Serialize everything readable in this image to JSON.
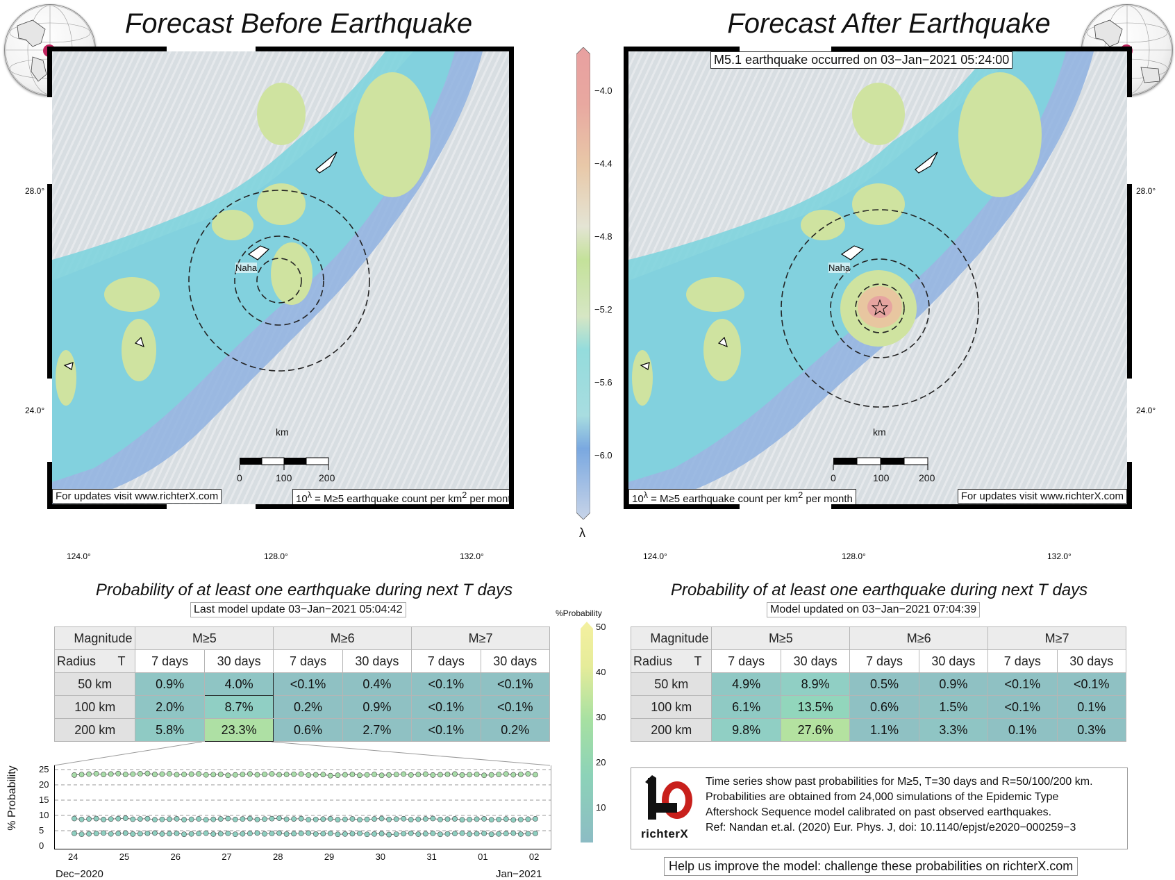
{
  "left_map": {
    "title": "Forecast Before Earthquake",
    "footer_left": "For updates visit www.richterX.com",
    "footer_right_prefix": "10",
    "footer_right_sup": "λ",
    "footer_right_rest": " = M≥5 earthquake count per km",
    "footer_right_sup2": "2",
    "footer_right_tail": " per month",
    "city": "Naha",
    "scale_unit": "km",
    "scale_labels": [
      "0",
      "100",
      "200"
    ],
    "lat_labels": [
      "28.0°",
      "24.0°"
    ],
    "lon_labels": [
      "124.0°",
      "128.0°",
      "132.0°"
    ]
  },
  "right_map": {
    "title": "Forecast After Earthquake",
    "event_note": "M5.1 earthquake occurred on 03−Jan−2021 05:24:00",
    "footer_left_prefix": "10",
    "footer_left_sup": "λ",
    "footer_left_rest": " = M≥5 earthquake count per km",
    "footer_left_sup2": "2",
    "footer_left_tail": " per month",
    "footer_right": "For updates visit www.richterX.com",
    "city": "Naha",
    "scale_unit": "km",
    "scale_labels": [
      "0",
      "100",
      "200"
    ],
    "lat_labels": [
      "28.0°",
      "24.0°"
    ],
    "lon_labels": [
      "124.0°",
      "128.0°",
      "132.0°"
    ]
  },
  "map_colorbar": {
    "symbol": "λ",
    "ticks": [
      "−4.0",
      "−4.4",
      "−4.8",
      "−5.2",
      "−5.6",
      "−6.0"
    ]
  },
  "left_table": {
    "title": "Probability of at least one earthquake during next T days",
    "update": "Last model update 03−Jan−2021 05:04:42",
    "hdr_magnitude": "Magnitude",
    "hdr_radius": "Radius",
    "hdr_t": "T",
    "mags": [
      "M≥5",
      "M≥6",
      "M≥7"
    ],
    "periods": [
      "7 days",
      "30 days",
      "7 days",
      "30 days",
      "7 days",
      "30 days"
    ],
    "rows": [
      {
        "radius": "50 km",
        "cells": [
          "0.9%",
          "4.0%",
          "<0.1%",
          "0.4%",
          "<0.1%",
          "<0.1%"
        ]
      },
      {
        "radius": "100 km",
        "cells": [
          "2.0%",
          "8.7%",
          "0.2%",
          "0.9%",
          "<0.1%",
          "<0.1%"
        ]
      },
      {
        "radius": "200 km",
        "cells": [
          "5.8%",
          "23.3%",
          "0.6%",
          "2.7%",
          "<0.1%",
          "0.2%"
        ]
      }
    ]
  },
  "right_table": {
    "title": "Probability of at least one earthquake during next T days",
    "update": "Model updated on 03−Jan−2021 07:04:39",
    "hdr_magnitude": "Magnitude",
    "hdr_radius": "Radius",
    "hdr_t": "T",
    "mags": [
      "M≥5",
      "M≥6",
      "M≥7"
    ],
    "periods": [
      "7 days",
      "30 days",
      "7 days",
      "30 days",
      "7 days",
      "30 days"
    ],
    "rows": [
      {
        "radius": "50 km",
        "cells": [
          "4.9%",
          "8.9%",
          "0.5%",
          "0.9%",
          "<0.1%",
          "<0.1%"
        ]
      },
      {
        "radius": "100 km",
        "cells": [
          "6.1%",
          "13.5%",
          "0.6%",
          "1.5%",
          "<0.1%",
          "0.1%"
        ]
      },
      {
        "radius": "200 km",
        "cells": [
          "9.8%",
          "27.6%",
          "1.1%",
          "3.3%",
          "0.1%",
          "0.3%"
        ]
      }
    ]
  },
  "prob_colorbar": {
    "label": "%Probability",
    "ticks": [
      "50",
      "40",
      "30",
      "20",
      "10"
    ]
  },
  "chart_data": {
    "type": "scatter",
    "ylabel": "% Probability",
    "ylim": [
      0,
      25
    ],
    "yticks": [
      "25",
      "20",
      "15",
      "10",
      "5",
      "0"
    ],
    "xticks": [
      "24",
      "25",
      "26",
      "27",
      "28",
      "29",
      "30",
      "31",
      "01",
      "02"
    ],
    "x_start_label": "Dec−2020",
    "x_end_label": "Jan−2021",
    "series": [
      {
        "values": [
          23.4,
          23.6,
          23.5,
          23.3,
          23.5,
          23.2,
          23.3,
          23.4,
          23.3,
          23.5
        ]
      },
      {
        "values": [
          8.8,
          8.9,
          8.7,
          8.8,
          8.9,
          8.7,
          8.8,
          8.8,
          8.7,
          8.7
        ]
      },
      {
        "values": [
          4.0,
          4.1,
          4.0,
          4.0,
          4.1,
          4.0,
          3.9,
          4.0,
          4.0,
          4.0
        ]
      }
    ]
  },
  "info": {
    "lines": [
      "Time series show past probabilities for M≥5, T=30 days and R=50/100/200 km.",
      "Probabilities are obtained from 24,000 simulations of the Epidemic Type",
      "Aftershock Sequence model calibrated on past observed earthquakes.",
      "Ref: Nandan et.al. (2020) Eur. Phys. J, doi: 10.1140/epjst/e2020−000259−3"
    ],
    "logo_text": "richterX",
    "help": "Help us improve the model: challenge these probabilities on richterX.com"
  }
}
